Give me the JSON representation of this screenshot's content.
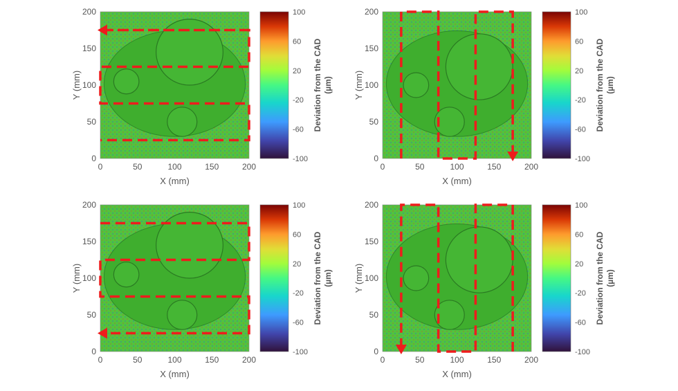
{
  "chart_data": [
    {
      "type": "heatmap",
      "xlabel": "X (mm)",
      "ylabel": "Y (mm)",
      "xlim": [
        0,
        200
      ],
      "ylim": [
        0,
        200
      ],
      "xticks": [
        "0",
        "50",
        "100",
        "150",
        "200"
      ],
      "yticks": [
        "0",
        "50",
        "100",
        "150",
        "200"
      ],
      "colorbar": {
        "label": "Deviation from the CAD",
        "unit": "(µm)",
        "range": [
          -100,
          100
        ],
        "ticks": [
          "100",
          "60",
          "20",
          "-20",
          "-60",
          "-100"
        ]
      },
      "scan_path": {
        "direction": "horizontal",
        "arrow": "left",
        "points": [
          [
            200,
            175
          ],
          [
            0,
            175
          ],
          [
            0,
            175
          ],
          [
            200,
            175
          ],
          [
            200,
            125
          ],
          [
            0,
            125
          ],
          [
            0,
            75
          ],
          [
            200,
            75
          ],
          [
            200,
            25
          ],
          [
            0,
            25
          ]
        ],
        "arrow_at": [
          [
            200,
            175
          ],
          [
            0,
            175
          ]
        ]
      }
    },
    {
      "type": "heatmap",
      "xlabel": "X (mm)",
      "ylabel": "Y (mm)",
      "xlim": [
        0,
        200
      ],
      "ylim": [
        0,
        200
      ],
      "xticks": [
        "0",
        "50",
        "100",
        "150",
        "200"
      ],
      "yticks": [
        "0",
        "50",
        "100",
        "150",
        "200"
      ],
      "colorbar": {
        "label": "Deviation from the CAD",
        "unit": "(µm)",
        "range": [
          -100,
          100
        ],
        "ticks": [
          "100",
          "60",
          "20",
          "-20",
          "-60",
          "-100"
        ]
      },
      "scan_path": {
        "direction": "vertical",
        "arrow": "down",
        "points": [
          [
            25,
            0
          ],
          [
            25,
            200
          ],
          [
            75,
            200
          ],
          [
            75,
            0
          ],
          [
            125,
            0
          ],
          [
            125,
            200
          ],
          [
            175,
            200
          ],
          [
            175,
            0
          ]
        ],
        "arrow_at": [
          [
            175,
            200
          ],
          [
            175,
            0
          ]
        ]
      }
    },
    {
      "type": "heatmap",
      "xlabel": "X (mm)",
      "ylabel": "Y (mm)",
      "xlim": [
        0,
        200
      ],
      "ylim": [
        0,
        200
      ],
      "xticks": [
        "0",
        "50",
        "100",
        "150",
        "200"
      ],
      "yticks": [
        "0",
        "50",
        "100",
        "150",
        "200"
      ],
      "colorbar": {
        "label": "Deviation from the CAD",
        "unit": "(µm)",
        "range": [
          -100,
          100
        ],
        "ticks": [
          "100",
          "60",
          "20",
          "-20",
          "-60",
          "-100"
        ]
      },
      "scan_path": {
        "direction": "horizontal",
        "arrow": "left",
        "points": [
          [
            0,
            175
          ],
          [
            200,
            175
          ],
          [
            200,
            125
          ],
          [
            0,
            125
          ],
          [
            0,
            75
          ],
          [
            200,
            75
          ],
          [
            200,
            25
          ],
          [
            0,
            25
          ]
        ],
        "arrow_at": [
          [
            200,
            25
          ],
          [
            0,
            25
          ]
        ]
      }
    },
    {
      "type": "heatmap",
      "xlabel": "X (mm)",
      "ylabel": "Y (mm)",
      "xlim": [
        0,
        200
      ],
      "ylim": [
        0,
        200
      ],
      "xticks": [
        "0",
        "50",
        "100",
        "150",
        "200"
      ],
      "yticks": [
        "0",
        "50",
        "100",
        "150",
        "200"
      ],
      "colorbar": {
        "label": "Deviation from the CAD",
        "unit": "(µm)",
        "range": [
          -100,
          100
        ],
        "ticks": [
          "100",
          "60",
          "20",
          "-20",
          "-60",
          "-100"
        ]
      },
      "scan_path": {
        "direction": "vertical",
        "arrow": "down",
        "points": [
          [
            175,
            0
          ],
          [
            175,
            200
          ],
          [
            125,
            200
          ],
          [
            125,
            0
          ],
          [
            75,
            0
          ],
          [
            75,
            200
          ],
          [
            25,
            200
          ],
          [
            25,
            0
          ]
        ],
        "arrow_at": [
          [
            25,
            200
          ],
          [
            25,
            0
          ]
        ]
      }
    }
  ],
  "colors": {
    "scan_path": "#ee1c1c",
    "surface": "#4cc23a",
    "pocket": "#3fae2e"
  }
}
